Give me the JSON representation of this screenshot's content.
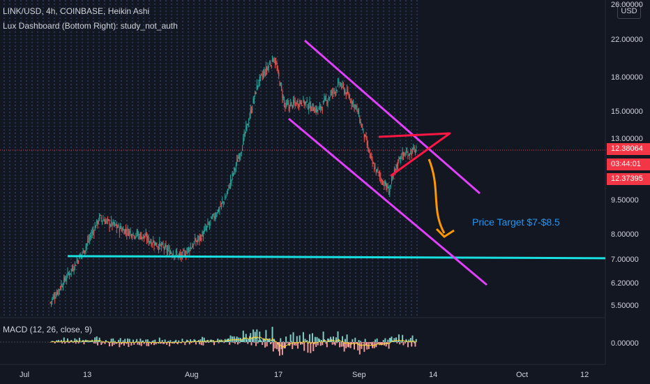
{
  "header": {
    "symbol_line": "LINK/USD, 4h, COINBASE, Heikin Ashi",
    "indicator_line": "Lux Dashboard (Bottom Right): study_not_auth"
  },
  "currency_button": "USD",
  "macd_label": "MACD (12, 26, close, 9)",
  "annotation": "Price Target $7-$8.5",
  "price_axis": {
    "ticks": [
      "22.00000",
      "18.00000",
      "15.00000",
      "13.00000",
      "9.50000",
      "8.00000",
      "7.00000",
      "6.20000",
      "5.50000"
    ],
    "top_partial": "26.00000",
    "macd_zero": "0.00000",
    "last_price": "12.38064",
    "countdown": "03:44:01",
    "second_price": "12.37395"
  },
  "time_axis": [
    "Jul",
    "13",
    "Aug",
    "17",
    "Sep",
    "14",
    "Oct",
    "12"
  ],
  "colors": {
    "background": "#131722",
    "up": "#26a69a",
    "down": "#ef5350",
    "channel": "#e040fb",
    "triangle": "#ff1744",
    "support": "#18e0e0",
    "arrow": "#ff9800",
    "target_text": "#2196f3",
    "macd_line": "#fdd835"
  },
  "chart_data": {
    "type": "candlestick",
    "scale": "log",
    "x_range": [
      "2021-07-01",
      "2021-10-14"
    ],
    "y_range": [
      5.0,
      26.0
    ],
    "series": [
      {
        "kind": "ohlc",
        "values": [
          {
            "date": "2021-07-06",
            "close": 5.6
          },
          {
            "date": "2021-07-09",
            "close": 6.4
          },
          {
            "date": "2021-07-12",
            "close": 7.3
          },
          {
            "date": "2021-07-15",
            "close": 8.7
          },
          {
            "date": "2021-07-19",
            "close": 8.2
          },
          {
            "date": "2021-07-23",
            "close": 7.9
          },
          {
            "date": "2021-07-27",
            "close": 7.4
          },
          {
            "date": "2021-07-30",
            "close": 7.1
          },
          {
            "date": "2021-08-03",
            "close": 8.0
          },
          {
            "date": "2021-08-07",
            "close": 9.6
          },
          {
            "date": "2021-08-10",
            "close": 12.5
          },
          {
            "date": "2021-08-13",
            "close": 17.5
          },
          {
            "date": "2021-08-16",
            "close": 20.1
          },
          {
            "date": "2021-08-18",
            "close": 15.5
          },
          {
            "date": "2021-08-21",
            "close": 16.0
          },
          {
            "date": "2021-08-24",
            "close": 15.2
          },
          {
            "date": "2021-08-28",
            "close": 17.5
          },
          {
            "date": "2021-08-31",
            "close": 15.5
          },
          {
            "date": "2021-09-03",
            "close": 11.5
          },
          {
            "date": "2021-09-06",
            "close": 10.0
          },
          {
            "date": "2021-09-08",
            "close": 12.0
          },
          {
            "date": "2021-09-11",
            "close": 12.4
          }
        ]
      },
      {
        "kind": "horizontal_line",
        "value": 7.1
      }
    ]
  }
}
